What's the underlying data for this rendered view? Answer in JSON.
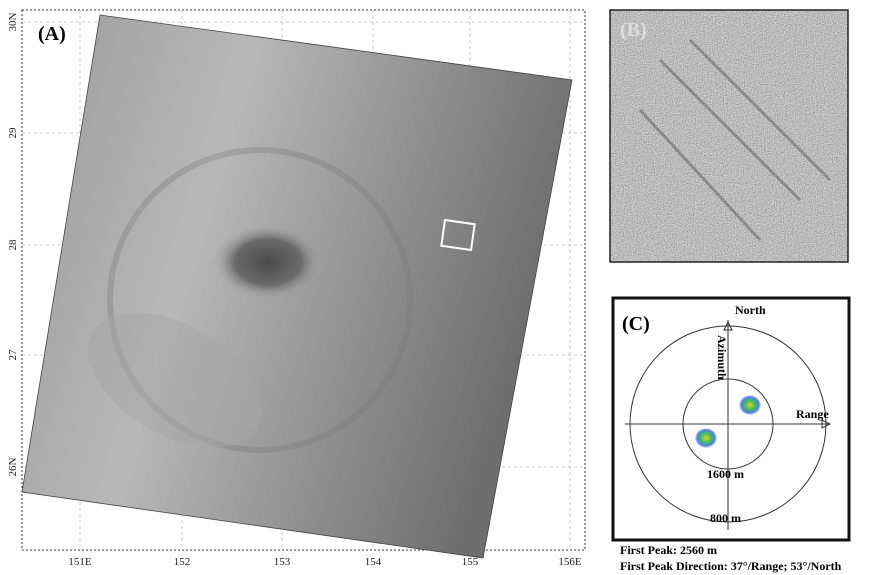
{
  "panel_a": {
    "label": "(A)",
    "lat_labels": [
      "30N",
      "29",
      "28",
      "27",
      "26N"
    ],
    "lon_labels": [
      "151E",
      "152",
      "153",
      "154",
      "155",
      "156E"
    ]
  },
  "panel_b": {
    "label": "(B)"
  },
  "panel_c": {
    "label": "(C)",
    "north": "North",
    "azimuth": "Azimuth",
    "range": "Range",
    "inner_ring": "1600 m",
    "outer_ring": "800 m"
  },
  "caption": {
    "peak": "First Peak: 2560 m",
    "direction": "First Peak Direction: 37°/Range; 53°/North"
  }
}
